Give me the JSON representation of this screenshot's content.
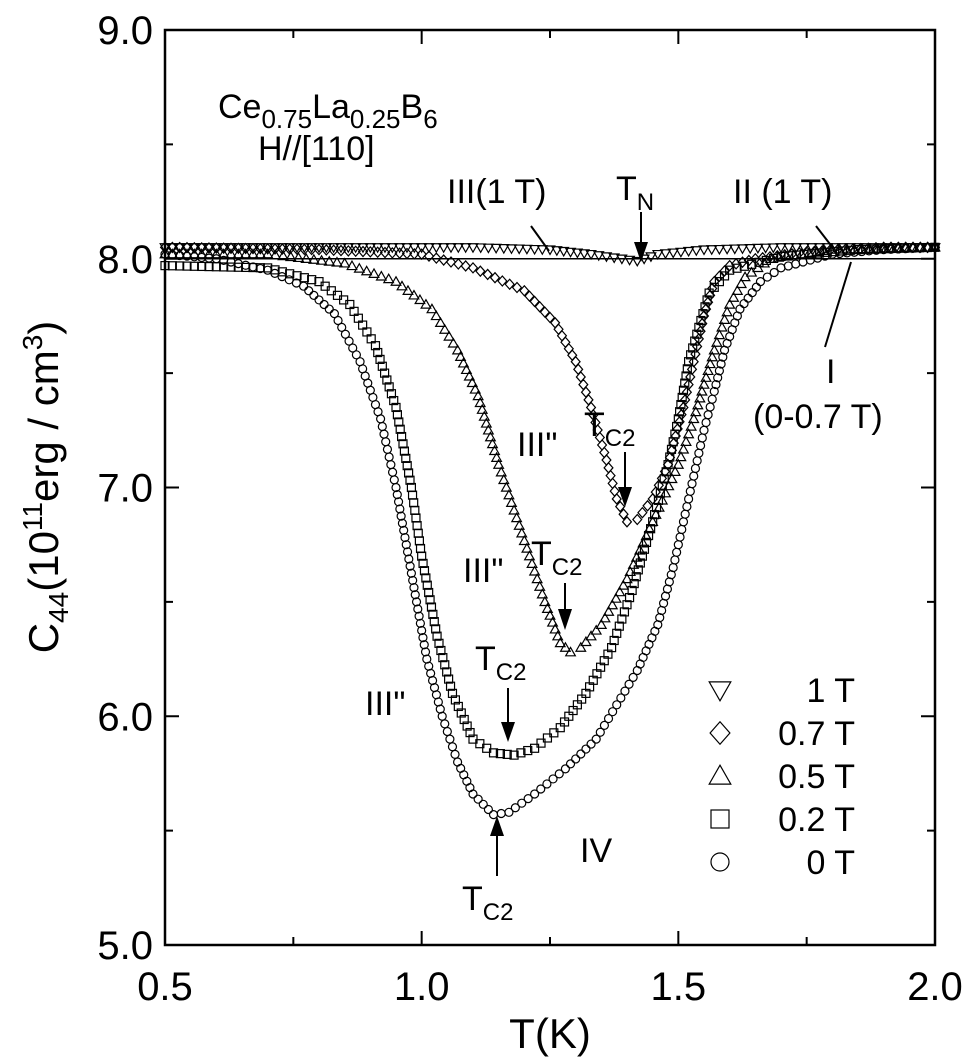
{
  "chart_data": {
    "type": "scatter",
    "compound": {
      "base1": "Ce",
      "sub1": "0.75",
      "base2": "La",
      "sub2": "0.25",
      "base3": "B",
      "sub3": "6"
    },
    "field_direction": "H//[110]",
    "xlabel": "T(K)",
    "ylabel": {
      "base": "C",
      "sub": "44",
      "rest1": "(10",
      "sup1": "11",
      "rest2": "erg / cm",
      "sup2": "3",
      "rest3": ")"
    },
    "xlim": [
      0.5,
      2.0
    ],
    "ylim": [
      5.0,
      9.0
    ],
    "xticks": [
      "0.5",
      "1.0",
      "1.5",
      "2.0"
    ],
    "yticks": [
      "5.0",
      "6.0",
      "7.0",
      "8.0",
      "9.0"
    ],
    "annotations": {
      "phase_III_1T": "III(1 T)",
      "tn": {
        "base": "T",
        "sub": "N"
      },
      "phase_II_1T": "II (1 T)",
      "phase_I": "I",
      "phase_I_range": "(0-0.7 T)",
      "phase_III2_07": "III\"",
      "phase_III2_05": "III\"",
      "phase_III2_00": "III\"",
      "phase_IV": "IV",
      "tc2": {
        "base": "T",
        "sub": "C2"
      }
    },
    "series": [
      {
        "name": "1 T",
        "marker": "triangle-down",
        "points": [
          [
            0.5,
            8.05
          ],
          [
            0.7,
            8.05
          ],
          [
            0.9,
            8.05
          ],
          [
            1.1,
            8.05
          ],
          [
            1.25,
            8.04
          ],
          [
            1.33,
            8.02
          ],
          [
            1.39,
            8.0
          ],
          [
            1.42,
            7.99
          ],
          [
            1.46,
            8.02
          ],
          [
            1.55,
            8.04
          ],
          [
            1.7,
            8.05
          ],
          [
            1.85,
            8.05
          ],
          [
            2.0,
            8.05
          ]
        ]
      },
      {
        "name": "0.7 T",
        "marker": "diamond",
        "points": [
          [
            0.5,
            8.05
          ],
          [
            0.8,
            8.04
          ],
          [
            1.0,
            8.02
          ],
          [
            1.1,
            7.96
          ],
          [
            1.2,
            7.86
          ],
          [
            1.26,
            7.72
          ],
          [
            1.3,
            7.55
          ],
          [
            1.33,
            7.35
          ],
          [
            1.36,
            7.12
          ],
          [
            1.38,
            6.95
          ],
          [
            1.4,
            6.85
          ],
          [
            1.42,
            6.86
          ],
          [
            1.45,
            6.95
          ],
          [
            1.48,
            7.1
          ],
          [
            1.51,
            7.35
          ],
          [
            1.53,
            7.55
          ],
          [
            1.55,
            7.75
          ],
          [
            1.57,
            7.9
          ],
          [
            1.6,
            7.97
          ],
          [
            1.65,
            8.0
          ],
          [
            1.75,
            8.03
          ],
          [
            1.9,
            8.05
          ],
          [
            2.0,
            8.05
          ]
        ]
      },
      {
        "name": "0.5 T",
        "marker": "triangle-up",
        "points": [
          [
            0.5,
            8.02
          ],
          [
            0.7,
            8.02
          ],
          [
            0.85,
            7.98
          ],
          [
            0.95,
            7.9
          ],
          [
            1.02,
            7.78
          ],
          [
            1.07,
            7.6
          ],
          [
            1.11,
            7.4
          ],
          [
            1.15,
            7.1
          ],
          [
            1.18,
            6.9
          ],
          [
            1.21,
            6.7
          ],
          [
            1.24,
            6.5
          ],
          [
            1.27,
            6.32
          ],
          [
            1.29,
            6.28
          ],
          [
            1.31,
            6.3
          ],
          [
            1.35,
            6.4
          ],
          [
            1.4,
            6.6
          ],
          [
            1.45,
            6.85
          ],
          [
            1.5,
            7.1
          ],
          [
            1.53,
            7.3
          ],
          [
            1.57,
            7.6
          ],
          [
            1.6,
            7.8
          ],
          [
            1.63,
            7.92
          ],
          [
            1.68,
            8.0
          ],
          [
            1.8,
            8.04
          ],
          [
            2.0,
            8.05
          ]
        ]
      },
      {
        "name": "0.2 T",
        "marker": "square",
        "points": [
          [
            0.5,
            7.97
          ],
          [
            0.7,
            7.96
          ],
          [
            0.8,
            7.9
          ],
          [
            0.86,
            7.8
          ],
          [
            0.91,
            7.62
          ],
          [
            0.95,
            7.35
          ],
          [
            0.98,
            7.0
          ],
          [
            1.0,
            6.7
          ],
          [
            1.03,
            6.35
          ],
          [
            1.06,
            6.1
          ],
          [
            1.1,
            5.9
          ],
          [
            1.14,
            5.84
          ],
          [
            1.18,
            5.83
          ],
          [
            1.22,
            5.86
          ],
          [
            1.27,
            5.95
          ],
          [
            1.32,
            6.1
          ],
          [
            1.37,
            6.3
          ],
          [
            1.41,
            6.55
          ],
          [
            1.45,
            6.85
          ],
          [
            1.48,
            7.1
          ],
          [
            1.5,
            7.3
          ],
          [
            1.52,
            7.55
          ],
          [
            1.54,
            7.7
          ],
          [
            1.56,
            7.85
          ],
          [
            1.6,
            7.95
          ],
          [
            1.7,
            8.01
          ],
          [
            1.85,
            8.04
          ],
          [
            2.0,
            8.05
          ]
        ]
      },
      {
        "name": "0 T",
        "marker": "circle",
        "points": [
          [
            0.5,
            8.02
          ],
          [
            0.6,
            8.0
          ],
          [
            0.7,
            7.95
          ],
          [
            0.77,
            7.88
          ],
          [
            0.83,
            7.76
          ],
          [
            0.88,
            7.55
          ],
          [
            0.92,
            7.3
          ],
          [
            0.95,
            7.0
          ],
          [
            0.97,
            6.75
          ],
          [
            0.99,
            6.5
          ],
          [
            1.01,
            6.25
          ],
          [
            1.04,
            6.0
          ],
          [
            1.07,
            5.8
          ],
          [
            1.1,
            5.66
          ],
          [
            1.14,
            5.57
          ],
          [
            1.17,
            5.58
          ],
          [
            1.22,
            5.66
          ],
          [
            1.28,
            5.77
          ],
          [
            1.34,
            5.9
          ],
          [
            1.38,
            6.05
          ],
          [
            1.42,
            6.2
          ],
          [
            1.46,
            6.4
          ],
          [
            1.49,
            6.65
          ],
          [
            1.51,
            6.85
          ],
          [
            1.53,
            7.05
          ],
          [
            1.55,
            7.25
          ],
          [
            1.57,
            7.42
          ],
          [
            1.59,
            7.6
          ],
          [
            1.62,
            7.78
          ],
          [
            1.66,
            7.9
          ],
          [
            1.7,
            7.96
          ],
          [
            1.8,
            8.02
          ],
          [
            1.9,
            8.04
          ],
          [
            2.0,
            8.05
          ]
        ]
      }
    ],
    "legend": {
      "placement": "lower-right",
      "order": [
        "1 T",
        "0.7 T",
        "0.5 T",
        "0.2 T",
        "0 T"
      ]
    }
  }
}
